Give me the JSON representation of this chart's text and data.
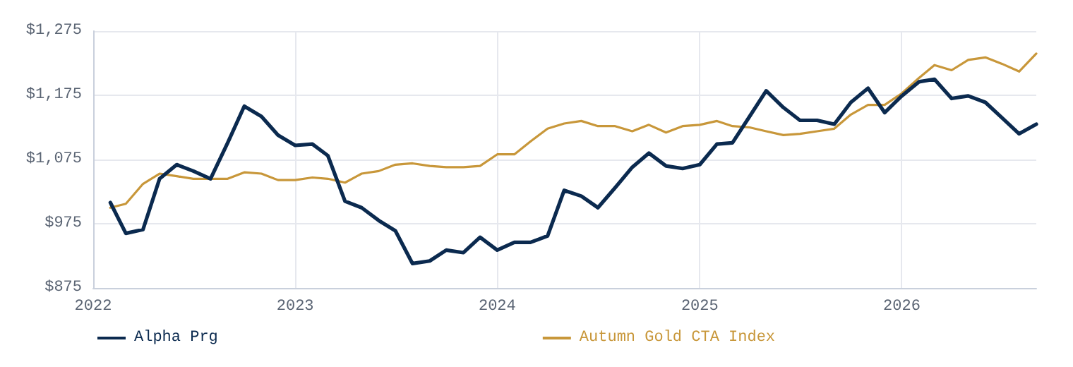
{
  "chart_data": {
    "type": "line",
    "x": [
      "2022-02",
      "2022-03",
      "2022-04",
      "2022-05",
      "2022-06",
      "2022-07",
      "2022-08",
      "2022-09",
      "2022-10",
      "2022-11",
      "2022-12",
      "2023-01",
      "2023-02",
      "2023-03",
      "2023-04",
      "2023-05",
      "2023-06",
      "2023-07",
      "2023-08",
      "2023-09",
      "2023-10",
      "2023-11",
      "2023-12",
      "2024-01",
      "2024-02",
      "2024-03",
      "2024-04",
      "2024-05",
      "2024-06",
      "2024-07",
      "2024-08",
      "2024-09",
      "2024-10",
      "2024-11",
      "2024-12",
      "2025-01",
      "2025-02",
      "2025-03",
      "2025-04",
      "2025-05",
      "2025-06",
      "2025-07",
      "2025-08",
      "2025-09",
      "2025-10",
      "2025-11",
      "2025-12",
      "2026-01",
      "2026-02",
      "2026-03",
      "2026-04",
      "2026-05",
      "2026-06",
      "2026-07",
      "2026-08",
      "2026-09"
    ],
    "series": [
      {
        "name": "Alpha Prg",
        "color": "#0b2a4f",
        "values": [
          1008,
          960,
          966,
          1045,
          1067,
          1057,
          1045,
          1101,
          1158,
          1142,
          1113,
          1097,
          1099,
          1081,
          1010,
          1000,
          980,
          964,
          913,
          917,
          934,
          930,
          954,
          934,
          946,
          946,
          956,
          1027,
          1018,
          1000,
          1031,
          1063,
          1085,
          1065,
          1061,
          1067,
          1099,
          1101,
          1142,
          1182,
          1156,
          1136,
          1136,
          1130,
          1164,
          1186,
          1148,
          1174,
          1196,
          1200,
          1170,
          1174,
          1164,
          1140,
          1115,
          1130
        ]
      },
      {
        "name": "Autumn Gold CTA Index",
        "color": "#c8973a",
        "values": [
          1000,
          1006,
          1037,
          1053,
          1049,
          1045,
          1045,
          1045,
          1055,
          1053,
          1043,
          1043,
          1047,
          1045,
          1039,
          1053,
          1057,
          1067,
          1069,
          1065,
          1063,
          1063,
          1065,
          1083,
          1083,
          1103,
          1123,
          1131,
          1135,
          1127,
          1127,
          1119,
          1129,
          1117,
          1127,
          1129,
          1135,
          1127,
          1125,
          1119,
          1113,
          1115,
          1119,
          1123,
          1145,
          1160,
          1160,
          1178,
          1202,
          1222,
          1214,
          1230,
          1234,
          1224,
          1212,
          1240
        ]
      }
    ],
    "xlim": [
      "2022",
      "2026-09"
    ],
    "xticks": [
      "2022",
      "2023",
      "2024",
      "2025",
      "2026"
    ],
    "ylim": [
      875,
      1275
    ],
    "yticks": [
      {
        "value": 875,
        "label": "$875"
      },
      {
        "value": 975,
        "label": "$975"
      },
      {
        "value": 1075,
        "label": "$1,075"
      },
      {
        "value": 1175,
        "label": "$1,175"
      },
      {
        "value": 1275,
        "label": "$1,275"
      }
    ],
    "grid": true,
    "legend": "bottom",
    "marker": "none",
    "line_style": "solid"
  }
}
